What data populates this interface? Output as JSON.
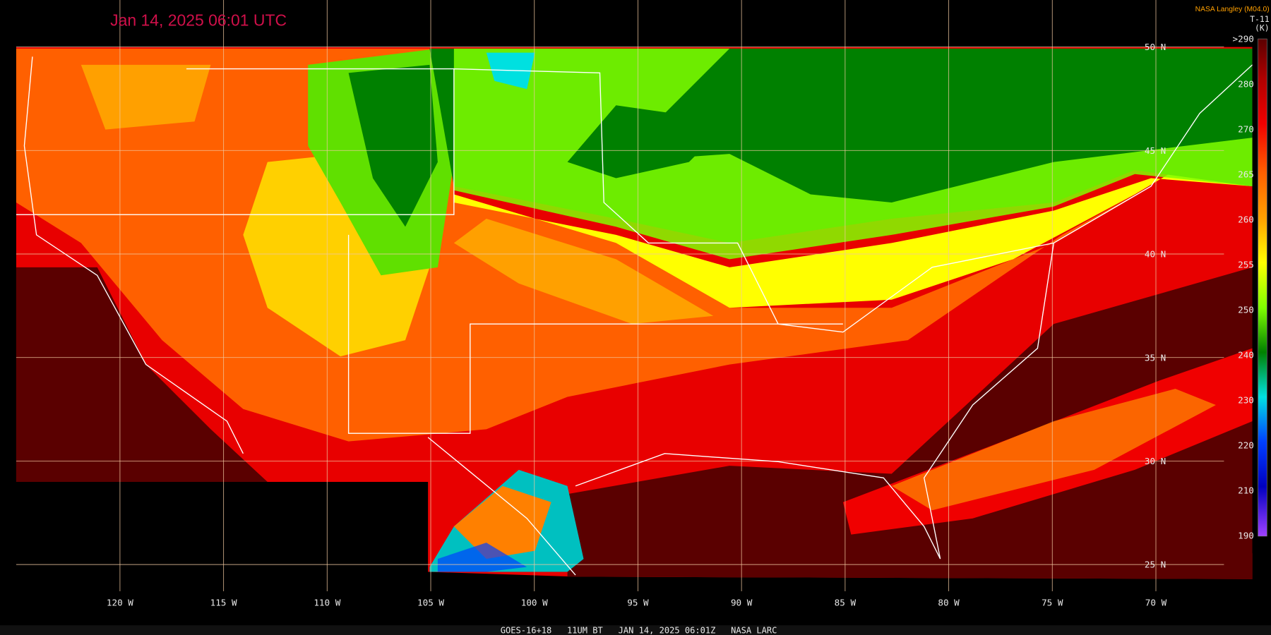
{
  "header": {
    "timestamp": "Jan 14, 2025 06:01 UTC",
    "source": "NASA Langley (M04.0)"
  },
  "legend": {
    "title": "T-11",
    "unit": "(K)",
    "labels": [
      ">290",
      "280",
      "270",
      "265",
      "260",
      "255",
      "250",
      "240",
      "230",
      "220",
      "210",
      "190"
    ]
  },
  "map": {
    "lat_labels": [
      "50 N",
      "45 N",
      "40 N",
      "35 N",
      "30 N",
      "25 N"
    ],
    "lon_labels": [
      "120 W",
      "115 W",
      "110 W",
      "105 W",
      "100 W",
      "95 W",
      "90 W",
      "85 W",
      "80 W",
      "75 W",
      "70 W"
    ]
  },
  "footer": "GOES-16+18   11UM BT   JAN 14, 2025 06:01Z   NASA LARC"
}
